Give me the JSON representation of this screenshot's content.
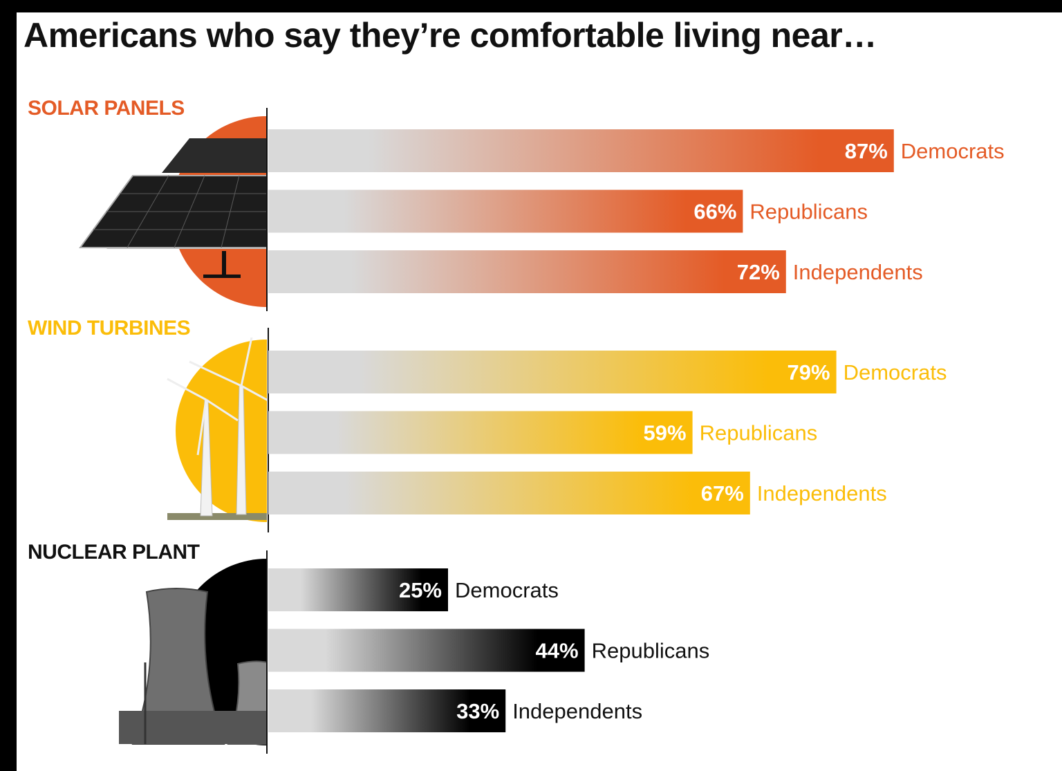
{
  "chart_data": {
    "type": "bar",
    "orientation": "horizontal",
    "title": "Americans who say they’re comfortable living near…",
    "xlim": [
      0,
      100
    ],
    "value_suffix": "%",
    "groups": [
      {
        "name": "SOLAR PANELS",
        "color": "#e45b26",
        "icon": "solar-panel-icon",
        "series": [
          {
            "name": "Democrats",
            "value": 87
          },
          {
            "name": "Republicans",
            "value": 66
          },
          {
            "name": "Independents",
            "value": 72
          }
        ]
      },
      {
        "name": "WIND TURBINES",
        "color": "#fbbd09",
        "icon": "wind-turbine-icon",
        "series": [
          {
            "name": "Democrats",
            "value": 79
          },
          {
            "name": "Republicans",
            "value": 59
          },
          {
            "name": "Independents",
            "value": 67
          }
        ]
      },
      {
        "name": "NUCLEAR PLANT",
        "color": "#000000",
        "icon": "cooling-tower-icon",
        "series": [
          {
            "name": "Democrats",
            "value": 25
          },
          {
            "name": "Republicans",
            "value": 44
          },
          {
            "name": "Independents",
            "value": 33
          }
        ]
      }
    ],
    "bar_start_color": "#d9d9d9",
    "grid": false,
    "legend": "none"
  }
}
